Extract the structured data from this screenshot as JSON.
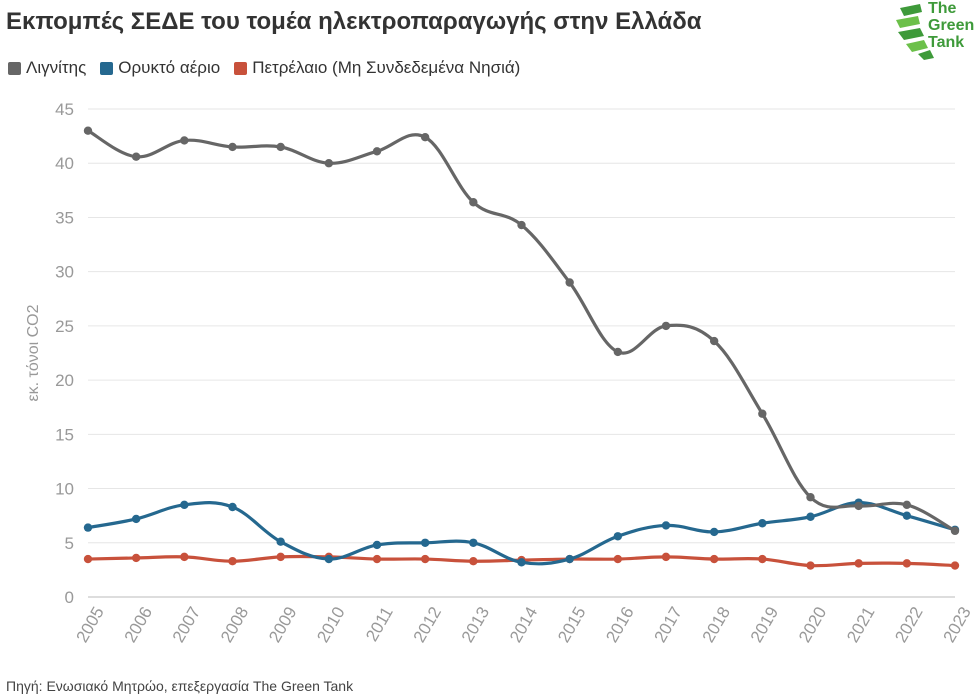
{
  "header": {
    "title": "Εκπομπές ΣΕΔΕ του τομέα ηλεκτροπαραγωγής στην Ελλάδα"
  },
  "logo": {
    "line1": "The",
    "line2": "Green",
    "line3": "Tank",
    "icon": "green-tank-logo-icon",
    "color": "#3e9a3a"
  },
  "footer": {
    "source": "Πηγή: Ενωσιακό Μητρώο, επεξεργασία The Green Tank"
  },
  "chart_data": {
    "type": "line",
    "title": "Εκπομπές ΣΕΔΕ του τομέα ηλεκτροπαραγωγής στην Ελλάδα",
    "xlabel": "",
    "ylabel": "εκ. τόνοι CO2",
    "ylim": [
      0,
      45
    ],
    "yticks": [
      0,
      5,
      10,
      15,
      20,
      25,
      30,
      35,
      40,
      45
    ],
    "grid": true,
    "legend_position": "top-left",
    "x": [
      "2005",
      "2006",
      "2007",
      "2008",
      "2009",
      "2010",
      "2011",
      "2012",
      "2013",
      "2014",
      "2015",
      "2016",
      "2017",
      "2018",
      "2019",
      "2020",
      "2021",
      "2022",
      "2023"
    ],
    "series": [
      {
        "name": "Λιγνίτης",
        "color": "#666666",
        "values": [
          43.0,
          40.6,
          42.1,
          41.5,
          41.5,
          40.0,
          41.1,
          42.4,
          36.4,
          34.3,
          29.0,
          22.6,
          25.0,
          23.6,
          16.9,
          9.2,
          8.4,
          8.5,
          6.1
        ]
      },
      {
        "name": "Ορυκτό αέριο",
        "color": "#25688f",
        "values": [
          6.4,
          7.2,
          8.5,
          8.3,
          5.1,
          3.5,
          4.8,
          5.0,
          5.0,
          3.2,
          3.5,
          5.6,
          6.6,
          6.0,
          6.8,
          7.4,
          8.7,
          7.5,
          6.2
        ]
      },
      {
        "name": "Πετρέλαιο (Μη Συνδεδεμένα Νησιά)",
        "color": "#c8513b",
        "values": [
          3.5,
          3.6,
          3.7,
          3.3,
          3.7,
          3.7,
          3.5,
          3.5,
          3.3,
          3.4,
          3.5,
          3.5,
          3.7,
          3.5,
          3.5,
          2.9,
          3.1,
          3.1,
          2.9
        ]
      }
    ]
  }
}
